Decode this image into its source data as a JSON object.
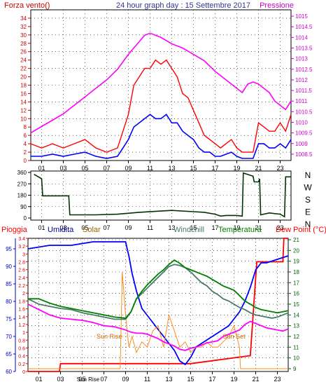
{
  "colors": {
    "wind": "#ff0000",
    "wind_avg": "#0000ff",
    "pressure": "#ff00ff",
    "direction": "#003300",
    "rain": "#ff0000",
    "humidity": "#0000ff",
    "solar": "#ff8c1a",
    "windchill": "#4a7a6a",
    "temperature": "#008000",
    "dewpoint": "#ff00ff",
    "axis_left": "#cc0000",
    "grid": "#000000"
  },
  "chart_data": [
    {
      "type": "line",
      "title": "24 hour graph day : 15 Settembre 2017",
      "left_label": "Forza vento()",
      "right_label": "Pressione",
      "x_ticks": [
        "01",
        "03",
        "05",
        "07",
        "09",
        "11",
        "13",
        "15",
        "17",
        "19",
        "21",
        "23"
      ],
      "xlim": [
        0,
        24
      ],
      "y_left_ticks": [
        0,
        2,
        4,
        6,
        8,
        10,
        12,
        14,
        16,
        18,
        20,
        22,
        24,
        26,
        28,
        30,
        32,
        34
      ],
      "ylim_left": [
        0,
        36
      ],
      "y_right_ticks": [
        1008.5,
        1009,
        1009.5,
        1010,
        1010.5,
        1011,
        1011.5,
        1012,
        1012.5,
        1013,
        1013.5,
        1014,
        1014.5,
        1015
      ],
      "ylim_right": [
        1008.2,
        1015.3
      ],
      "series": [
        {
          "key": "wind",
          "axis": "left",
          "x": [
            0,
            1,
            2,
            3,
            4,
            5,
            6,
            7,
            8,
            8.5,
            9,
            9.5,
            10,
            10.5,
            11,
            11.5,
            12,
            12.5,
            13,
            13.5,
            14,
            14.5,
            15,
            15.5,
            16,
            16.5,
            17,
            17.5,
            18,
            18.5,
            19,
            19.5,
            20,
            20.5,
            21,
            21.5,
            22,
            22.5,
            23,
            23.5,
            24
          ],
          "y": [
            4,
            3,
            4,
            3,
            4,
            5,
            3,
            2,
            3,
            7,
            11,
            18,
            20,
            22,
            22,
            24,
            23,
            24,
            22,
            20,
            16,
            15,
            12,
            9,
            6,
            5,
            4,
            3,
            4,
            5,
            3,
            2,
            2,
            2,
            9,
            8,
            7,
            7,
            9,
            7,
            11
          ]
        },
        {
          "key": "wind_avg",
          "axis": "left",
          "x": [
            0,
            1,
            2,
            3,
            4,
            5,
            6,
            7,
            8,
            8.5,
            9,
            9.5,
            10,
            10.5,
            11,
            11.5,
            12,
            12.5,
            13,
            13.5,
            14,
            14.5,
            15,
            15.5,
            16,
            16.5,
            17,
            17.5,
            18,
            18.5,
            19,
            19.5,
            20,
            20.5,
            21,
            21.5,
            22,
            22.5,
            23,
            23.5,
            24
          ],
          "y": [
            1,
            1,
            1.5,
            1,
            1.5,
            2,
            1,
            0.5,
            1,
            3,
            5,
            8,
            9,
            10,
            11,
            10,
            10,
            11,
            9,
            9,
            7,
            6,
            5,
            3,
            2,
            2,
            1,
            1,
            1.5,
            2,
            1,
            0.5,
            0.5,
            0.5,
            4,
            4,
            3,
            3,
            4,
            3,
            5
          ]
        },
        {
          "key": "pressure",
          "axis": "right",
          "x": [
            0,
            1,
            2,
            3,
            4,
            5,
            6,
            7,
            8,
            9,
            10,
            10.5,
            11,
            12,
            13,
            14,
            15,
            16,
            17,
            17.5,
            18,
            19,
            19.5,
            20,
            20.5,
            21,
            22,
            22.5,
            23,
            23.5,
            24
          ],
          "y": [
            1009.5,
            1009.8,
            1010.1,
            1010.4,
            1010.8,
            1011.2,
            1011.6,
            1012,
            1012.5,
            1013.2,
            1013.8,
            1014.1,
            1014.2,
            1014,
            1013.7,
            1013.5,
            1013.2,
            1012.9,
            1012.4,
            1012.2,
            1012,
            1011.6,
            1011.4,
            1011.8,
            1011.9,
            1011.8,
            1011.4,
            1011,
            1010.8,
            1010.6,
            1011
          ]
        }
      ]
    },
    {
      "type": "line",
      "title": "",
      "right_labels": [
        "N",
        "W",
        "S",
        "E",
        "N"
      ],
      "y_left_ticks": [
        0,
        90,
        180,
        270,
        360
      ],
      "ylim_left": [
        0,
        360
      ],
      "x_ticks": [
        "01",
        "03",
        "05",
        "07",
        "09",
        "11",
        "13",
        "15",
        "17",
        "19",
        "21",
        "23"
      ],
      "xlim": [
        0,
        24
      ],
      "series": [
        {
          "key": "direction",
          "axis": "left",
          "x": [
            0.3,
            1,
            1.1,
            3.5,
            3.6,
            6,
            8,
            10,
            12,
            13,
            15,
            16,
            17,
            17.5,
            18,
            19,
            19.5,
            19.6,
            20.5,
            20.6,
            21,
            21.1,
            21.2,
            22,
            23,
            23.4,
            23.5,
            24
          ],
          "y": [
            345,
            310,
            175,
            175,
            25,
            25,
            30,
            45,
            55,
            60,
            50,
            45,
            30,
            15,
            20,
            20,
            15,
            355,
            330,
            285,
            285,
            310,
            25,
            40,
            30,
            10,
            325,
            325
          ]
        }
      ]
    },
    {
      "type": "line",
      "title": "",
      "legend": [
        "Pioggia",
        "Umidita",
        "Solar",
        "Windchill",
        "Temperatura",
        "Dew Point (°C)"
      ],
      "x_ticks": [
        "01",
        "03",
        "Sun Rise",
        "05",
        "07",
        "09",
        "11",
        "13",
        "15",
        "17",
        "19",
        "21",
        "23"
      ],
      "annotations": [
        "Sun Rise",
        "Sun Set"
      ],
      "xlim": [
        0,
        24
      ],
      "y_rain_ticks": [
        0,
        0.2,
        0.4,
        0.6,
        0.8,
        1,
        1.2,
        1.4,
        1.6,
        1.8,
        2,
        2.2,
        2.4,
        2.6,
        2.8,
        3,
        3.2,
        3.4
      ],
      "ylim_rain": [
        0,
        3.4
      ],
      "y_humidity_ticks": [
        60,
        65,
        70,
        75,
        80,
        85,
        90,
        95
      ],
      "ylim_humidity": [
        60,
        98
      ],
      "y_temp_ticks": [
        9,
        10,
        11,
        12,
        13,
        14,
        15,
        16,
        17,
        18,
        19,
        20,
        21
      ],
      "ylim_temp": [
        9,
        21
      ],
      "series": [
        {
          "key": "rain",
          "axis": "rain",
          "x": [
            0,
            2.9,
            3,
            8.9,
            9,
            14.9,
            15,
            20.4,
            20.5,
            21,
            21.1,
            23.5,
            23.6,
            24
          ],
          "y": [
            0,
            0,
            0.2,
            0.2,
            0.2,
            0.2,
            0.2,
            0.4,
            0.4,
            2.4,
            2.8,
            2.8,
            3.4,
            3.4
          ]
        },
        {
          "key": "humidity",
          "axis": "humidity",
          "x": [
            0,
            2,
            4,
            6,
            8,
            9,
            9.3,
            9.6,
            10,
            10.5,
            11,
            11.5,
            12,
            12.5,
            13,
            13.5,
            14,
            14.5,
            15,
            15.5,
            16,
            16.5,
            17,
            17.5,
            18,
            18.5,
            19,
            19.5,
            20,
            20.5,
            21,
            21.5,
            22,
            23,
            24
          ],
          "y": [
            95,
            96,
            96,
            97,
            97,
            97,
            93,
            88,
            83,
            78,
            76,
            74,
            72,
            70,
            68,
            66,
            63,
            62,
            64,
            67,
            68,
            69,
            70,
            71,
            72,
            73,
            75,
            77,
            80,
            84,
            89,
            91,
            91,
            92,
            93
          ]
        },
        {
          "key": "solar",
          "axis": "temp",
          "x": [
            0,
            4,
            5,
            6,
            7,
            8,
            8.5,
            8.7,
            9,
            9.3,
            9.6,
            10,
            10.5,
            11,
            11.5,
            12,
            12.5,
            13,
            13.5,
            14,
            14.5,
            15,
            15.5,
            16,
            16.5,
            17,
            17.5,
            18,
            18.5,
            19,
            19.5,
            19.6,
            20,
            24
          ],
          "y": [
            9,
            9,
            9,
            9,
            9,
            9,
            9,
            18,
            14,
            11,
            12,
            10.5,
            11.5,
            11,
            12.5,
            13,
            11,
            14,
            12.5,
            11,
            11.5,
            10.5,
            11,
            11,
            11.5,
            11,
            11,
            11.5,
            12,
            13,
            11,
            9,
            9,
            9
          ]
        },
        {
          "key": "windchill",
          "axis": "temp",
          "x": [
            0,
            1,
            2,
            3,
            4,
            5,
            6,
            7,
            8,
            9,
            9.5,
            10,
            10.5,
            11,
            11.5,
            12,
            12.5,
            13,
            13.5,
            14,
            14.5,
            15,
            15.5,
            16,
            16.5,
            17,
            17.5,
            18,
            18.5,
            19,
            19.5,
            20,
            20.5,
            21,
            21.5,
            22,
            22.5,
            23,
            23.5,
            24
          ],
          "y": [
            15.5,
            15,
            14.8,
            14.6,
            14.5,
            14.2,
            14,
            13.8,
            13.6,
            13.6,
            14.3,
            15.5,
            16,
            16.5,
            17,
            17.5,
            18,
            18.5,
            18.7,
            18.6,
            18.4,
            18,
            17.5,
            17,
            16.7,
            16.2,
            15.9,
            15.5,
            15.3,
            15,
            14.7,
            14.5,
            14.2,
            14,
            13.9,
            13.8,
            13.7,
            13.8,
            14,
            14.2
          ]
        },
        {
          "key": "temperature",
          "axis": "temp",
          "x": [
            0,
            1,
            2,
            3,
            4,
            5,
            6,
            7,
            8,
            9,
            9.5,
            10,
            10.5,
            11,
            11.5,
            12,
            12.5,
            13,
            13.5,
            14,
            14.5,
            15,
            15.5,
            16,
            16.5,
            17,
            17.5,
            18,
            18.5,
            19,
            19.5,
            20,
            20.5,
            21,
            21.5,
            22,
            22.5,
            23,
            23.5,
            24
          ],
          "y": [
            15.5,
            15.5,
            15.1,
            14.8,
            14.6,
            14.4,
            14.2,
            14,
            13.8,
            13.7,
            14.3,
            15.5,
            16.2,
            16.8,
            17.3,
            17.8,
            18.2,
            18.7,
            19.1,
            18.8,
            18.4,
            18.2,
            18,
            17.8,
            17.6,
            17.3,
            17,
            16.7,
            16.5,
            16.3,
            15.8,
            15.3,
            15,
            14.7,
            14.5,
            14.4,
            14.3,
            14.2,
            14.3,
            14.4
          ]
        },
        {
          "key": "dewpoint",
          "axis": "temp",
          "x": [
            0,
            1,
            2,
            3,
            4,
            5,
            6,
            7,
            8,
            9,
            9.5,
            10,
            10.5,
            11,
            11.5,
            12,
            12.5,
            13,
            13.5,
            14,
            14.5,
            15,
            15.5,
            16,
            16.5,
            17,
            17.5,
            18,
            18.5,
            19,
            19.5,
            20,
            20.5,
            21,
            21.5,
            22,
            22.5,
            23,
            23.5,
            24
          ],
          "y": [
            15,
            14.5,
            14,
            13.7,
            13.6,
            13.5,
            13.3,
            13,
            12.9,
            12.6,
            12.4,
            12.3,
            12.3,
            12.2,
            12,
            11.8,
            11.5,
            11.3,
            11.1,
            10.8,
            10.7,
            10.9,
            11,
            11.2,
            11.4,
            11.5,
            11.6,
            12,
            12.2,
            12.4,
            12.6,
            13.1,
            13.4,
            13.2,
            13,
            12.8,
            12.7,
            12.6,
            12.5,
            12.7
          ]
        }
      ]
    }
  ]
}
